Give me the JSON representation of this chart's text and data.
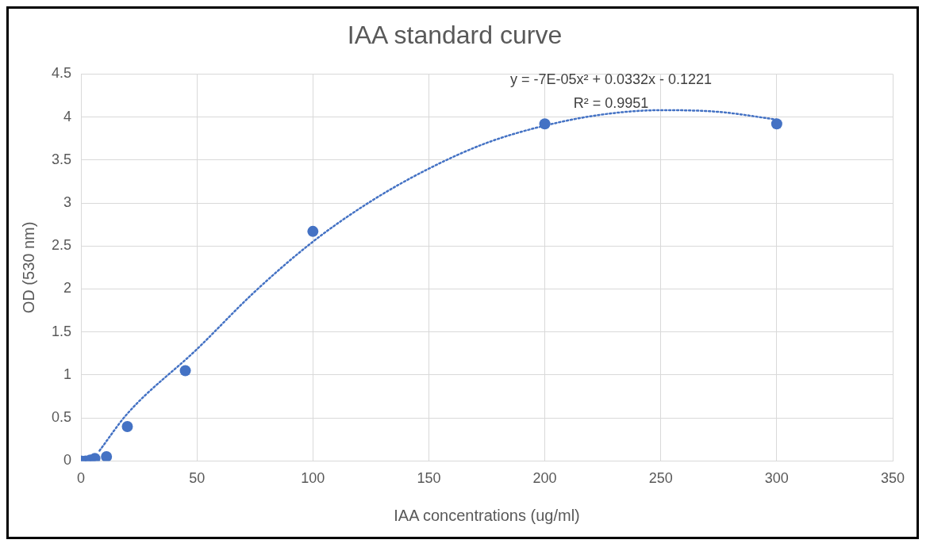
{
  "chart_data": {
    "type": "scatter",
    "title": "IAA standard curve",
    "xlabel": "IAA concentrations (ug/ml)",
    "ylabel": "OD (530 nm)",
    "xlim": [
      0,
      350
    ],
    "xticks": [
      0,
      50,
      100,
      150,
      200,
      250,
      300,
      350
    ],
    "ylim": [
      0,
      4.5
    ],
    "yticks": [
      0,
      0.5,
      1,
      1.5,
      2,
      2.5,
      3,
      3.5,
      4,
      4.5
    ],
    "grid": true,
    "legend": false,
    "annotations": [
      "y = -7E-05x² + 0.0332x - 0.1221",
      "R² = 0.9951"
    ],
    "series": [
      {
        "type": "scatter",
        "color": "#4472c4",
        "marker": "circle",
        "x": [
          0,
          2,
          4,
          6,
          11,
          20,
          45,
          100,
          200,
          300
        ],
        "values": [
          0,
          0,
          0.01,
          0.03,
          0.05,
          0.4,
          1.05,
          2.67,
          3.92,
          3.92
        ]
      },
      {
        "type": "line",
        "color": "#4472c4",
        "line_style": "dotted",
        "marker": "none",
        "x": [
          8,
          20,
          50,
          75,
          100,
          125,
          150,
          175,
          200,
          225,
          250,
          275,
          300
        ],
        "values": [
          0.12,
          0.55,
          1.3,
          1.97,
          2.55,
          3.02,
          3.4,
          3.7,
          3.9,
          4.03,
          4.08,
          4.06,
          3.97
        ]
      }
    ]
  }
}
